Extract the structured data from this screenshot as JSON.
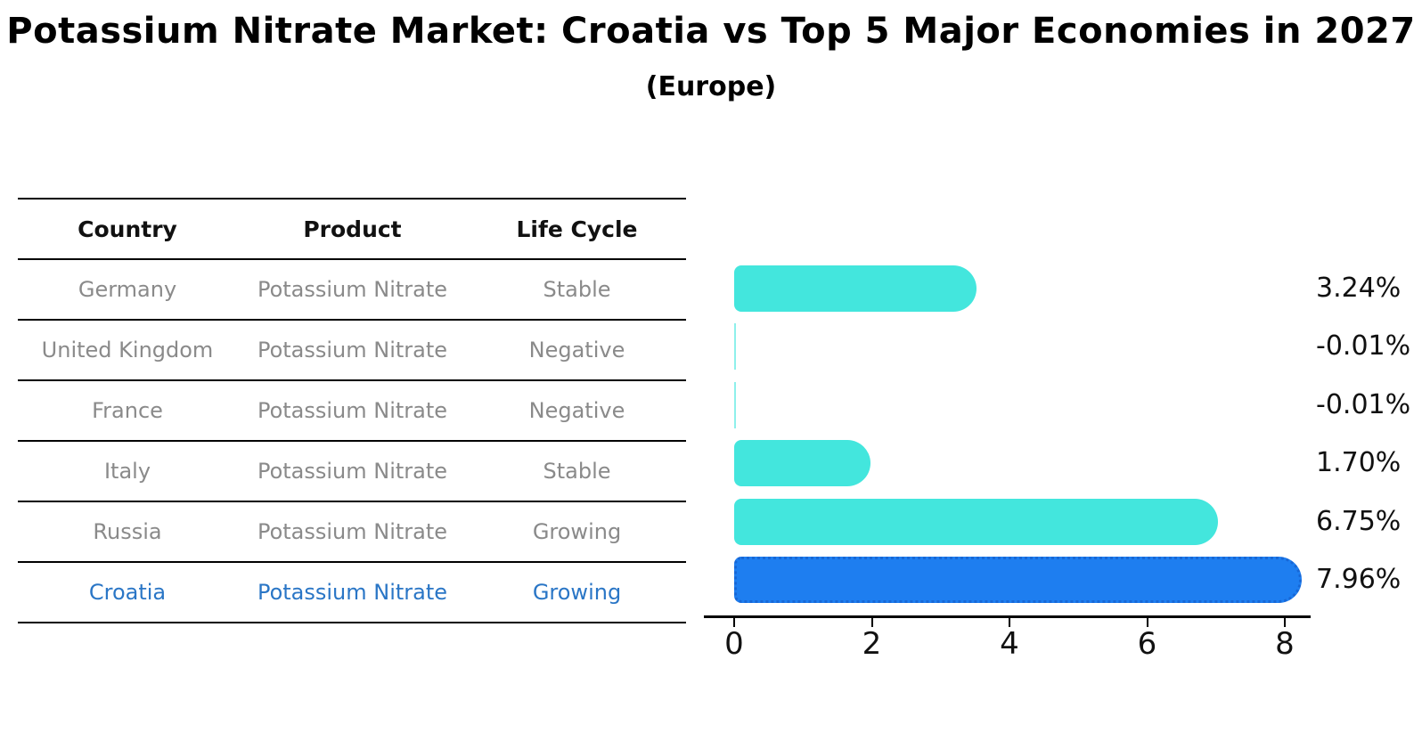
{
  "header": {
    "title": "Potassium Nitrate Market: Croatia vs Top 5 Major Economies in 2027",
    "subtitle": "(Europe)"
  },
  "table": {
    "headers": [
      "Country",
      "Product",
      "Life Cycle"
    ],
    "rows": [
      {
        "country": "Germany",
        "product": "Potassium Nitrate",
        "life_cycle": "Stable",
        "highlight": false
      },
      {
        "country": "United Kingdom",
        "product": "Potassium Nitrate",
        "life_cycle": "Negative",
        "highlight": false
      },
      {
        "country": "France",
        "product": "Potassium Nitrate",
        "life_cycle": "Negative",
        "highlight": false
      },
      {
        "country": "Italy",
        "product": "Potassium Nitrate",
        "life_cycle": "Stable",
        "highlight": false
      },
      {
        "country": "Russia",
        "product": "Potassium Nitrate",
        "life_cycle": "Growing",
        "highlight": false
      },
      {
        "country": "Croatia",
        "product": "Potassium Nitrate",
        "life_cycle": "Growing",
        "highlight": true
      }
    ]
  },
  "chart_data": {
    "type": "bar",
    "orientation": "horizontal",
    "title": "Potassium Nitrate Market: Croatia vs Top 5 Major Economies in 2027",
    "subtitle": "(Europe)",
    "categories": [
      "Germany",
      "United Kingdom",
      "France",
      "Italy",
      "Russia",
      "Croatia"
    ],
    "values": [
      3.24,
      -0.01,
      -0.01,
      1.7,
      6.75,
      7.96
    ],
    "value_labels": [
      "3.24%",
      "-0.01%",
      "-0.01%",
      "1.70%",
      "6.75%",
      "7.96%"
    ],
    "xticks": [
      0,
      2,
      4,
      6,
      8
    ],
    "xlim": [
      0,
      8.36
    ],
    "grid": false,
    "legend": "none",
    "bar_color": "#43e6dd",
    "highlight_color": "#1e7ef0",
    "highlight_index": 5,
    "text_color_default": "#8a8a8a",
    "highlight_text_color": "#2a76c6"
  }
}
